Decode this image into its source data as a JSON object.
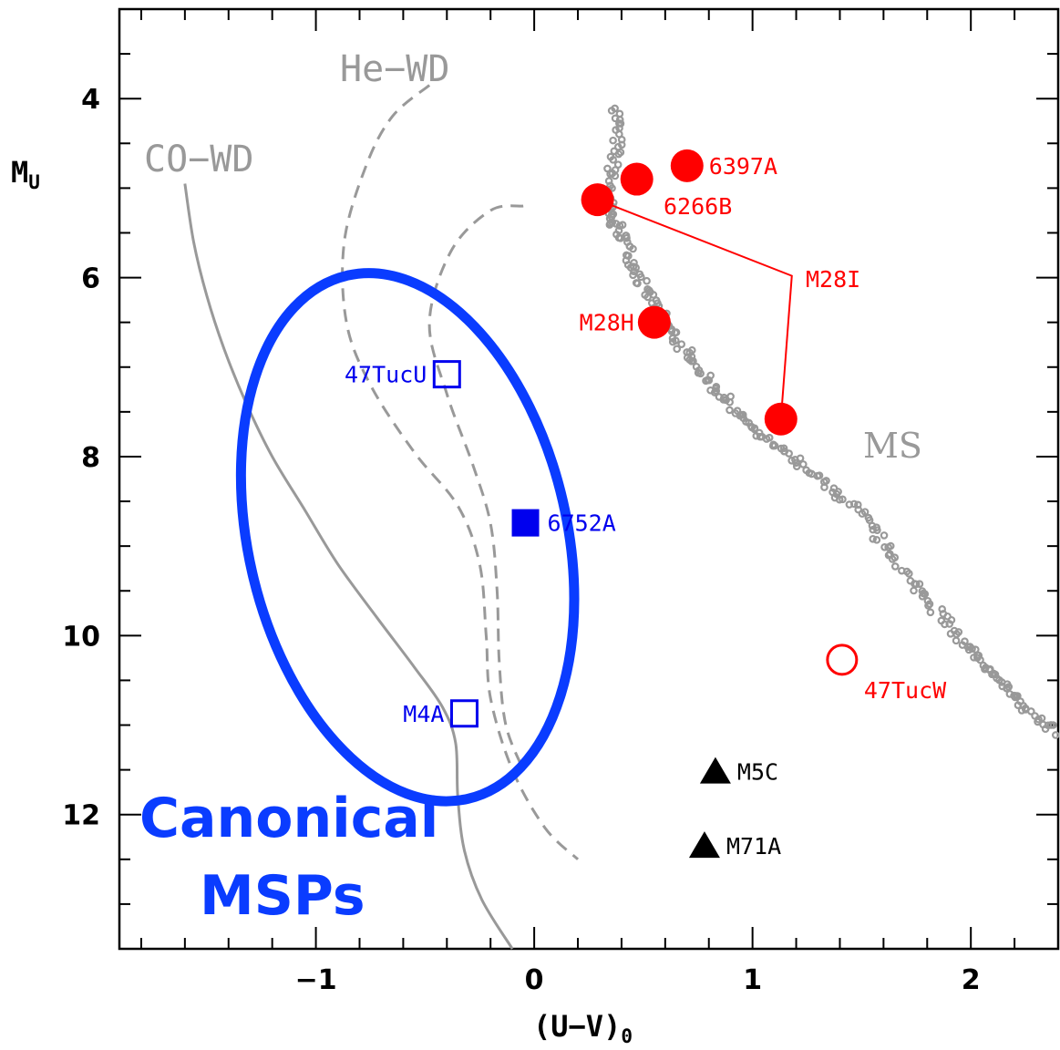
{
  "chart_data": {
    "type": "scatter",
    "xlabel": "(U−V)",
    "xlabel_sub": "0",
    "ylabel": "M",
    "ylabel_sub": "U",
    "xlim": [
      -1.9,
      2.4
    ],
    "ylim": [
      13.5,
      3.0
    ],
    "y_inverted": true,
    "x_ticks": [
      {
        "value": -1,
        "label": "−1"
      },
      {
        "value": 0,
        "label": "0"
      },
      {
        "value": 1,
        "label": "1"
      },
      {
        "value": 2,
        "label": "2"
      }
    ],
    "y_ticks": [
      {
        "value": 4,
        "label": "4"
      },
      {
        "value": 6,
        "label": "6"
      },
      {
        "value": 8,
        "label": "8"
      },
      {
        "value": 10,
        "label": "10"
      },
      {
        "value": 12,
        "label": "12"
      }
    ],
    "x_minor_step": 0.2,
    "y_minor_step": 0.5,
    "colors": {
      "red": "#ff0000",
      "blue": "#0000ee",
      "ellipse_blue": "#0a3cff",
      "gray": "#999999",
      "black": "#000000"
    },
    "curve_labels": {
      "co_wd": "CO−WD",
      "he_wd": "He−WD",
      "ms": "MS"
    },
    "co_wd_track": [
      [
        -1.6,
        4.95
      ],
      [
        -1.56,
        5.6
      ],
      [
        -1.5,
        6.2
      ],
      [
        -1.42,
        6.8
      ],
      [
        -1.32,
        7.4
      ],
      [
        -1.2,
        8.0
      ],
      [
        -1.05,
        8.6
      ],
      [
        -0.9,
        9.2
      ],
      [
        -0.72,
        9.8
      ],
      [
        -0.55,
        10.35
      ],
      [
        -0.42,
        10.8
      ],
      [
        -0.36,
        11.2
      ],
      [
        -0.35,
        11.8
      ],
      [
        -0.32,
        12.4
      ],
      [
        -0.24,
        12.95
      ],
      [
        -0.1,
        13.5
      ]
    ],
    "he_wd_track_1": [
      [
        -0.48,
        3.85
      ],
      [
        -0.65,
        4.2
      ],
      [
        -0.77,
        4.75
      ],
      [
        -0.87,
        5.6
      ],
      [
        -0.86,
        6.5
      ],
      [
        -0.75,
        7.2
      ],
      [
        -0.55,
        7.95
      ],
      [
        -0.35,
        8.55
      ],
      [
        -0.25,
        9.2
      ],
      [
        -0.22,
        10.0
      ],
      [
        -0.2,
        10.7
      ],
      [
        -0.1,
        11.5
      ],
      [
        0.05,
        12.15
      ],
      [
        0.2,
        12.5
      ]
    ],
    "he_wd_track_2": [
      [
        -0.05,
        5.2
      ],
      [
        -0.2,
        5.25
      ],
      [
        -0.38,
        5.7
      ],
      [
        -0.48,
        6.5
      ],
      [
        -0.4,
        7.3
      ],
      [
        -0.28,
        8.1
      ],
      [
        -0.2,
        8.75
      ],
      [
        -0.17,
        9.5
      ],
      [
        -0.16,
        10.3
      ],
      [
        -0.13,
        11.0
      ],
      [
        -0.05,
        11.5
      ]
    ],
    "ms_band": [
      [
        0.38,
        4.1
      ],
      [
        0.38,
        4.5
      ],
      [
        0.35,
        4.9
      ],
      [
        0.34,
        5.3
      ],
      [
        0.4,
        5.5
      ],
      [
        0.45,
        5.8
      ],
      [
        0.5,
        6.1
      ],
      [
        0.58,
        6.4
      ],
      [
        0.65,
        6.7
      ],
      [
        0.75,
        7.0
      ],
      [
        0.85,
        7.3
      ],
      [
        0.95,
        7.55
      ],
      [
        1.05,
        7.8
      ],
      [
        1.2,
        8.05
      ],
      [
        1.35,
        8.35
      ],
      [
        1.5,
        8.65
      ],
      [
        1.62,
        9.05
      ],
      [
        1.75,
        9.45
      ],
      [
        1.87,
        9.8
      ],
      [
        1.97,
        10.1
      ],
      [
        2.07,
        10.35
      ],
      [
        2.17,
        10.6
      ],
      [
        2.27,
        10.85
      ],
      [
        2.38,
        11.1
      ]
    ],
    "canonical_region": {
      "label_line1": "Canonical",
      "label_line2": "MSPs",
      "center": [
        -0.58,
        8.9
      ],
      "semi_axis_u": 0.73,
      "semi_axis_v": 3.0,
      "tilt_deg": -13
    },
    "series": [
      {
        "name": "filled-red-circles",
        "marker": "filled-circle",
        "color": "#ff0000",
        "points": [
          {
            "x": 0.7,
            "y": 4.75,
            "label": "6397A",
            "label_pos": "right"
          },
          {
            "x": 0.47,
            "y": 4.9,
            "label": "",
            "label_pos": "none"
          },
          {
            "x": 0.29,
            "y": 5.13,
            "label": "",
            "label_pos": "none"
          },
          {
            "x": 0.55,
            "y": 6.5,
            "label": "M28H",
            "label_pos": "left"
          },
          {
            "x": 1.13,
            "y": 7.58,
            "label": "",
            "label_pos": "none"
          }
        ]
      },
      {
        "name": "open-red-circle",
        "marker": "open-circle",
        "color": "#ff0000",
        "points": [
          {
            "x": 1.41,
            "y": 10.27,
            "label": "47TucW",
            "label_pos": "below-right"
          }
        ]
      },
      {
        "name": "open-blue-squares",
        "marker": "open-square",
        "color": "#0000ee",
        "points": [
          {
            "x": -0.4,
            "y": 7.08,
            "label": "47TucU",
            "label_pos": "left"
          },
          {
            "x": -0.32,
            "y": 10.87,
            "label": "M4A",
            "label_pos": "left"
          }
        ]
      },
      {
        "name": "filled-blue-square",
        "marker": "filled-square",
        "color": "#0000ee",
        "points": [
          {
            "x": -0.04,
            "y": 8.74,
            "label": "6752A",
            "label_pos": "right"
          }
        ]
      },
      {
        "name": "black-triangles",
        "marker": "filled-triangle",
        "color": "#000000",
        "points": [
          {
            "x": 0.83,
            "y": 11.52,
            "label": "M5C",
            "label_pos": "right"
          },
          {
            "x": 0.78,
            "y": 12.35,
            "label": "M71A",
            "label_pos": "right"
          }
        ]
      }
    ],
    "connector_labels": {
      "m28i": "M28I",
      "b6266": "6266B"
    },
    "m28i_connector": {
      "from": [
        0.29,
        5.13
      ],
      "elbow": [
        1.18,
        5.98
      ],
      "to": [
        1.13,
        7.58
      ]
    }
  }
}
